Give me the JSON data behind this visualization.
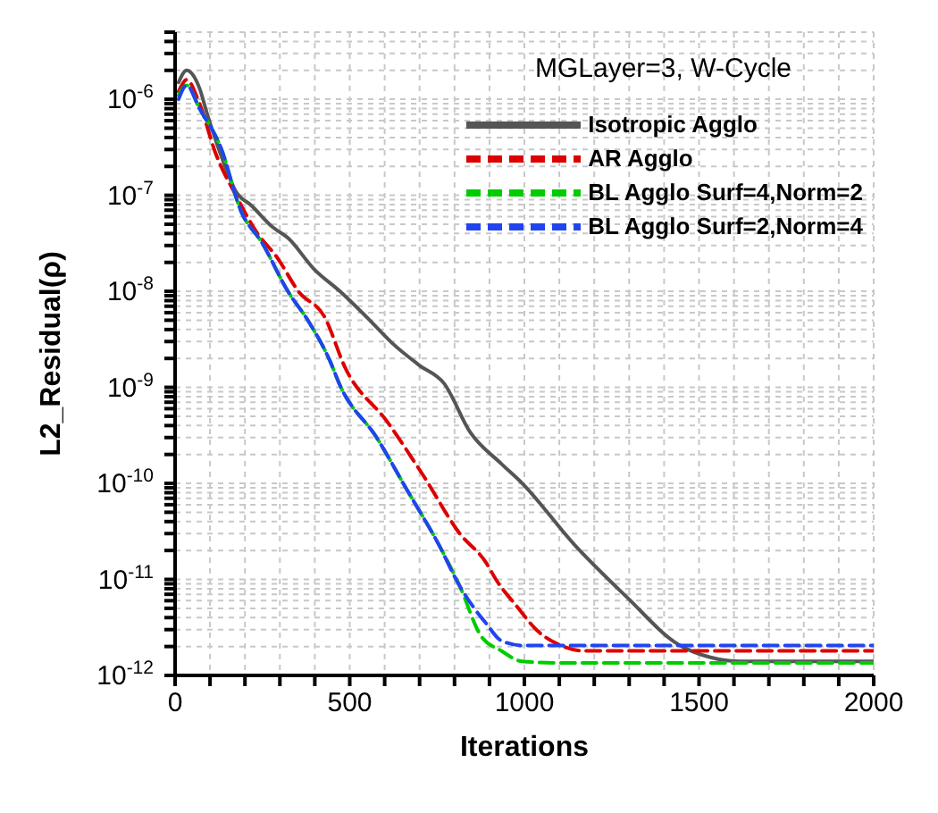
{
  "chart_data": {
    "type": "line",
    "title": "MGLayer=3, W-Cycle",
    "xlabel": "Iterations",
    "ylabel": "L2_Residual(ρ)",
    "log": "y",
    "grid": true,
    "legend": "top right",
    "marker": "none",
    "xlim": [
      0,
      2000
    ],
    "xticks": [
      0,
      {
        "value": 100,
        "label": null
      },
      {
        "value": 200,
        "label": null
      },
      {
        "value": 300,
        "label": null
      },
      {
        "value": 400,
        "label": null
      },
      500,
      {
        "value": 600,
        "label": null
      },
      {
        "value": 700,
        "label": null
      },
      {
        "value": 800,
        "label": null
      },
      {
        "value": 900,
        "label": null
      },
      1000,
      {
        "value": 1100,
        "label": null
      },
      {
        "value": 1200,
        "label": null
      },
      {
        "value": 1300,
        "label": null
      },
      {
        "value": 1400,
        "label": null
      },
      1500,
      {
        "value": 1600,
        "label": null
      },
      {
        "value": 1700,
        "label": null
      },
      {
        "value": 1800,
        "label": null
      },
      {
        "value": 1900,
        "label": null
      },
      2000
    ],
    "ylim": [
      1e-12,
      5e-06
    ],
    "yticks": [
      {
        "value": 1e-12,
        "label": "10$^{-12}$"
      },
      {
        "value": 2e-12,
        "label": null
      },
      {
        "value": 3e-12,
        "label": null
      },
      {
        "value": 4e-12,
        "label": null
      },
      {
        "value": 5e-12,
        "label": null
      },
      {
        "value": 6e-12,
        "label": null
      },
      {
        "value": 7e-12,
        "label": null
      },
      {
        "value": 8e-12,
        "label": null
      },
      {
        "value": 9e-12,
        "label": null
      },
      {
        "value": 1e-11,
        "label": "10$^{-11}$"
      },
      {
        "value": 2e-11,
        "label": null
      },
      {
        "value": 3e-11,
        "label": null
      },
      {
        "value": 4e-11,
        "label": null
      },
      {
        "value": 5e-11,
        "label": null
      },
      {
        "value": 6e-11,
        "label": null
      },
      {
        "value": 7e-11,
        "label": null
      },
      {
        "value": 8e-11,
        "label": null
      },
      {
        "value": 9e-11,
        "label": null
      },
      {
        "value": 1e-10,
        "label": "10$^{-10}$"
      },
      {
        "value": 2e-10,
        "label": null
      },
      {
        "value": 3e-10,
        "label": null
      },
      {
        "value": 4e-10,
        "label": null
      },
      {
        "value": 5e-10,
        "label": null
      },
      {
        "value": 6e-10,
        "label": null
      },
      {
        "value": 7e-10,
        "label": null
      },
      {
        "value": 8e-10,
        "label": null
      },
      {
        "value": 9e-10,
        "label": null
      },
      {
        "value": 1e-09,
        "label": "10$^{-9}$"
      },
      {
        "value": 2e-09,
        "label": null
      },
      {
        "value": 3e-09,
        "label": null
      },
      {
        "value": 4e-09,
        "label": null
      },
      {
        "value": 5e-09,
        "label": null
      },
      {
        "value": 6e-09,
        "label": null
      },
      {
        "value": 7e-09,
        "label": null
      },
      {
        "value": 8e-09,
        "label": null
      },
      {
        "value": 9e-09,
        "label": null
      },
      {
        "value": 1e-08,
        "label": "10$^{-8}$"
      },
      {
        "value": 2e-08,
        "label": null
      },
      {
        "value": 3e-08,
        "label": null
      },
      {
        "value": 4e-08,
        "label": null
      },
      {
        "value": 5e-08,
        "label": null
      },
      {
        "value": 6e-08,
        "label": null
      },
      {
        "value": 7e-08,
        "label": null
      },
      {
        "value": 8e-08,
        "label": null
      },
      {
        "value": 9e-08,
        "label": null
      },
      {
        "value": 1e-07,
        "label": "10$^{-7}$"
      },
      {
        "value": 2e-07,
        "label": null
      },
      {
        "value": 3e-07,
        "label": null
      },
      {
        "value": 4e-07,
        "label": null
      },
      {
        "value": 5e-07,
        "label": null
      },
      {
        "value": 6e-07,
        "label": null
      },
      {
        "value": 7e-07,
        "label": null
      },
      {
        "value": 8e-07,
        "label": null
      },
      {
        "value": 9e-07,
        "label": null
      },
      {
        "value": 1e-06,
        "label": "10$^{-6}$"
      },
      {
        "value": 2e-06,
        "label": null
      },
      {
        "value": 3e-06,
        "label": null
      },
      {
        "value": 4e-06,
        "label": null
      },
      {
        "value": 5e-06,
        "label": null
      }
    ],
    "series": [
      {
        "name": "Isotropic Agglo",
        "color": "#555555",
        "line_style": "solid",
        "x": [
          10,
          33,
          70,
          92,
          130,
          174,
          219,
          278,
          323,
          398,
          472,
          562,
          621,
          699,
          770,
          845,
          934,
          994,
          1143,
          1292,
          1441,
          1530,
          1618,
          2000
        ],
        "values": [
          1.5e-06,
          2e-06,
          1.3e-06,
          7e-07,
          2.7e-07,
          1.1e-07,
          7.8e-08,
          4.7e-08,
          3.6e-08,
          1.7e-08,
          1e-08,
          4.8e-09,
          2.9e-09,
          1.7e-09,
          1.1e-09,
          3.4e-10,
          1.6e-10,
          1e-10,
          2.3e-11,
          6.6e-12,
          2.1e-12,
          1.55e-12,
          1.4e-12,
          1.4e-12
        ]
      },
      {
        "name": "AR Agglo",
        "color": "#dd0000",
        "line_style": "dashed",
        "x": [
          10,
          33,
          70,
          115,
          174,
          234,
          294,
          353,
          428,
          487,
          607,
          711,
          815,
          890,
          920,
          979,
          1038,
          1098,
          1173,
          2000
        ],
        "values": [
          1.2e-06,
          1.6e-06,
          9e-07,
          2.8e-07,
          1e-07,
          4.1e-08,
          2.2e-08,
          1e-08,
          5.4e-09,
          1.6e-09,
          4.4e-10,
          1.2e-10,
          3e-11,
          1.5e-11,
          9.8e-12,
          5.2e-12,
          2.9e-12,
          2.1e-12,
          1.8e-12,
          1.8e-12
        ]
      },
      {
        "name": "BL Agglo Surf=4,Norm=2",
        "color": "#00cc00",
        "line_style": "dashed",
        "x": [
          10,
          33,
          70,
          130,
          189,
          249,
          323,
          383,
          443,
          472,
          577,
          666,
          755,
          815,
          875,
          934,
          994,
          1100,
          2000
        ],
        "values": [
          1.1e-06,
          1.4e-06,
          8e-07,
          3.2e-07,
          6.8e-08,
          3.2e-08,
          1e-08,
          4.8e-09,
          1.9e-09,
          1.05e-09,
          3e-10,
          8.3e-11,
          2.3e-11,
          8.5e-12,
          2.6e-12,
          1.8e-12,
          1.4e-12,
          1.35e-12,
          1.35e-12
        ]
      },
      {
        "name": "BL Agglo Surf=2,Norm=4",
        "color": "#2244ee",
        "line_style": "dashed",
        "x": [
          10,
          33,
          70,
          130,
          189,
          249,
          323,
          383,
          443,
          472,
          577,
          666,
          755,
          815,
          853,
          890,
          934,
          994,
          2000
        ],
        "values": [
          1e-06,
          1.4e-06,
          8e-07,
          3.2e-07,
          6.8e-08,
          3.2e-08,
          1e-08,
          4.8e-09,
          1.9e-09,
          1.05e-09,
          3e-10,
          8.3e-11,
          2.3e-11,
          8.5e-12,
          5.2e-12,
          3.5e-12,
          2.3e-12,
          2.05e-12,
          2.05e-12
        ]
      }
    ]
  }
}
